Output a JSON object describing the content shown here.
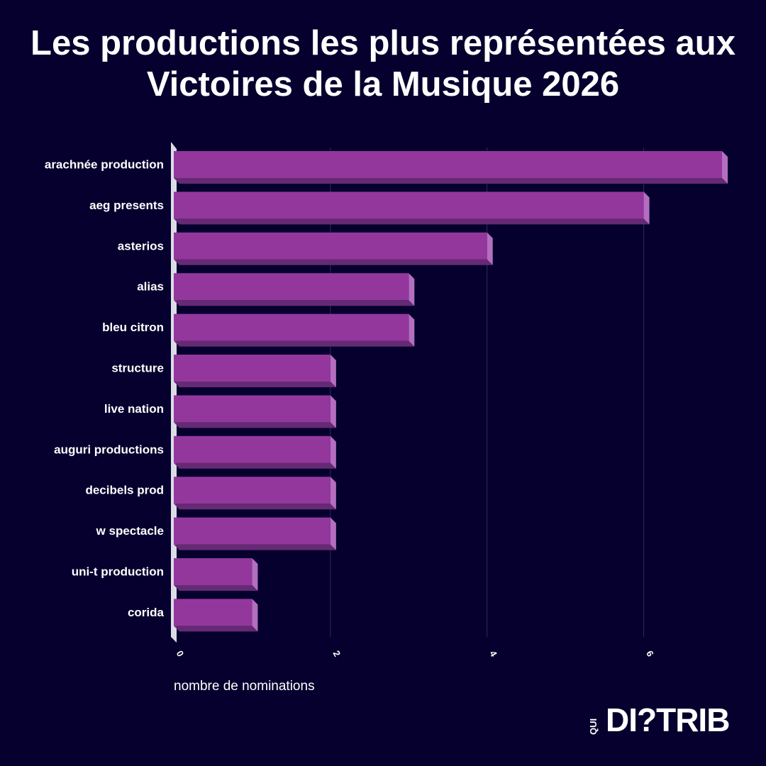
{
  "chart_data": {
    "type": "bar",
    "orientation": "horizontal",
    "title": "Les productions les plus représentées aux Victoires de la Musique 2026",
    "xlabel": "nombre de nominations",
    "ylabel": "",
    "categories": [
      "arachnée production",
      "aeg presents",
      "asterios",
      "alias",
      "bleu citron",
      "structure",
      "live nation",
      "auguri productions",
      "decibels prod",
      "w spectacle",
      "uni-t production",
      "corida"
    ],
    "values": [
      7,
      6,
      4,
      3,
      3,
      2,
      2,
      2,
      2,
      2,
      1,
      1
    ],
    "xlim": [
      0,
      7
    ],
    "x_ticks": [
      "0",
      "2",
      "4",
      "6"
    ],
    "grid": "vertical",
    "legend": "none",
    "colors": {
      "bar_face": "#93379d",
      "bar_bottom": "#652a73",
      "bar_side": "#b46ebf",
      "background": "#05002e",
      "gridline": "#2f2a57",
      "text": "#ffffff"
    }
  },
  "brand": {
    "stacked_text": "QUI",
    "main_text": "DI?TRIB"
  }
}
